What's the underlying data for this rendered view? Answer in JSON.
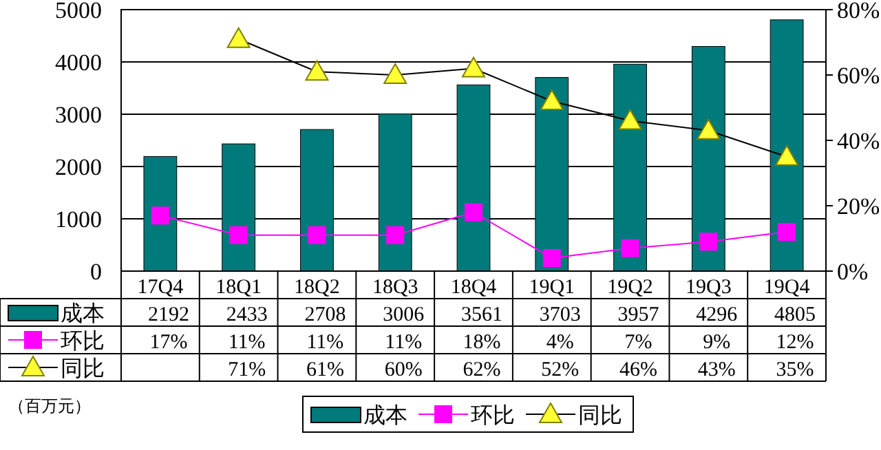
{
  "chart_data": {
    "type": "bar",
    "categories": [
      "17Q4",
      "18Q1",
      "18Q2",
      "18Q3",
      "18Q4",
      "19Q1",
      "19Q2",
      "19Q3",
      "19Q4"
    ],
    "series": [
      {
        "name": "成本",
        "color": "#007a7a",
        "values": [
          2192,
          2433,
          2708,
          3006,
          3561,
          3703,
          3957,
          4296,
          4805
        ],
        "value_labels": [
          "2192",
          "2433",
          "2708",
          "3006",
          "3561",
          "3703",
          "3957",
          "4296",
          "4805"
        ]
      },
      {
        "name": "环比",
        "type": "line",
        "axis": "y2",
        "marker": "square",
        "color": "#ff00ff",
        "values": [
          17,
          11,
          11,
          11,
          18,
          4,
          7,
          9,
          12
        ],
        "value_labels": [
          "17%",
          "11%",
          "11%",
          "11%",
          "18%",
          "4%",
          "7%",
          "9%",
          "12%"
        ]
      },
      {
        "name": "同比",
        "type": "line",
        "axis": "y2",
        "marker": "triangle",
        "color": "#ffff33",
        "values": [
          null,
          71,
          61,
          60,
          62,
          52,
          46,
          43,
          35
        ],
        "value_labels": [
          null,
          "71%",
          "61%",
          "60%",
          "62%",
          "52%",
          "46%",
          "43%",
          "35%"
        ]
      }
    ],
    "ylim": [
      0,
      5000
    ],
    "yticks": [
      0,
      1000,
      2000,
      3000,
      4000,
      5000
    ],
    "y2lim": [
      0,
      80
    ],
    "y2ticks": [
      {
        "value": 0,
        "label": "0%"
      },
      {
        "value": 20,
        "label": "20%"
      },
      {
        "value": 40,
        "label": "40%"
      },
      {
        "value": 60,
        "label": "60%"
      },
      {
        "value": 80,
        "label": "80%"
      }
    ],
    "grid": "y",
    "legend": "bottom",
    "annotations": [
      "（百万元）"
    ]
  }
}
